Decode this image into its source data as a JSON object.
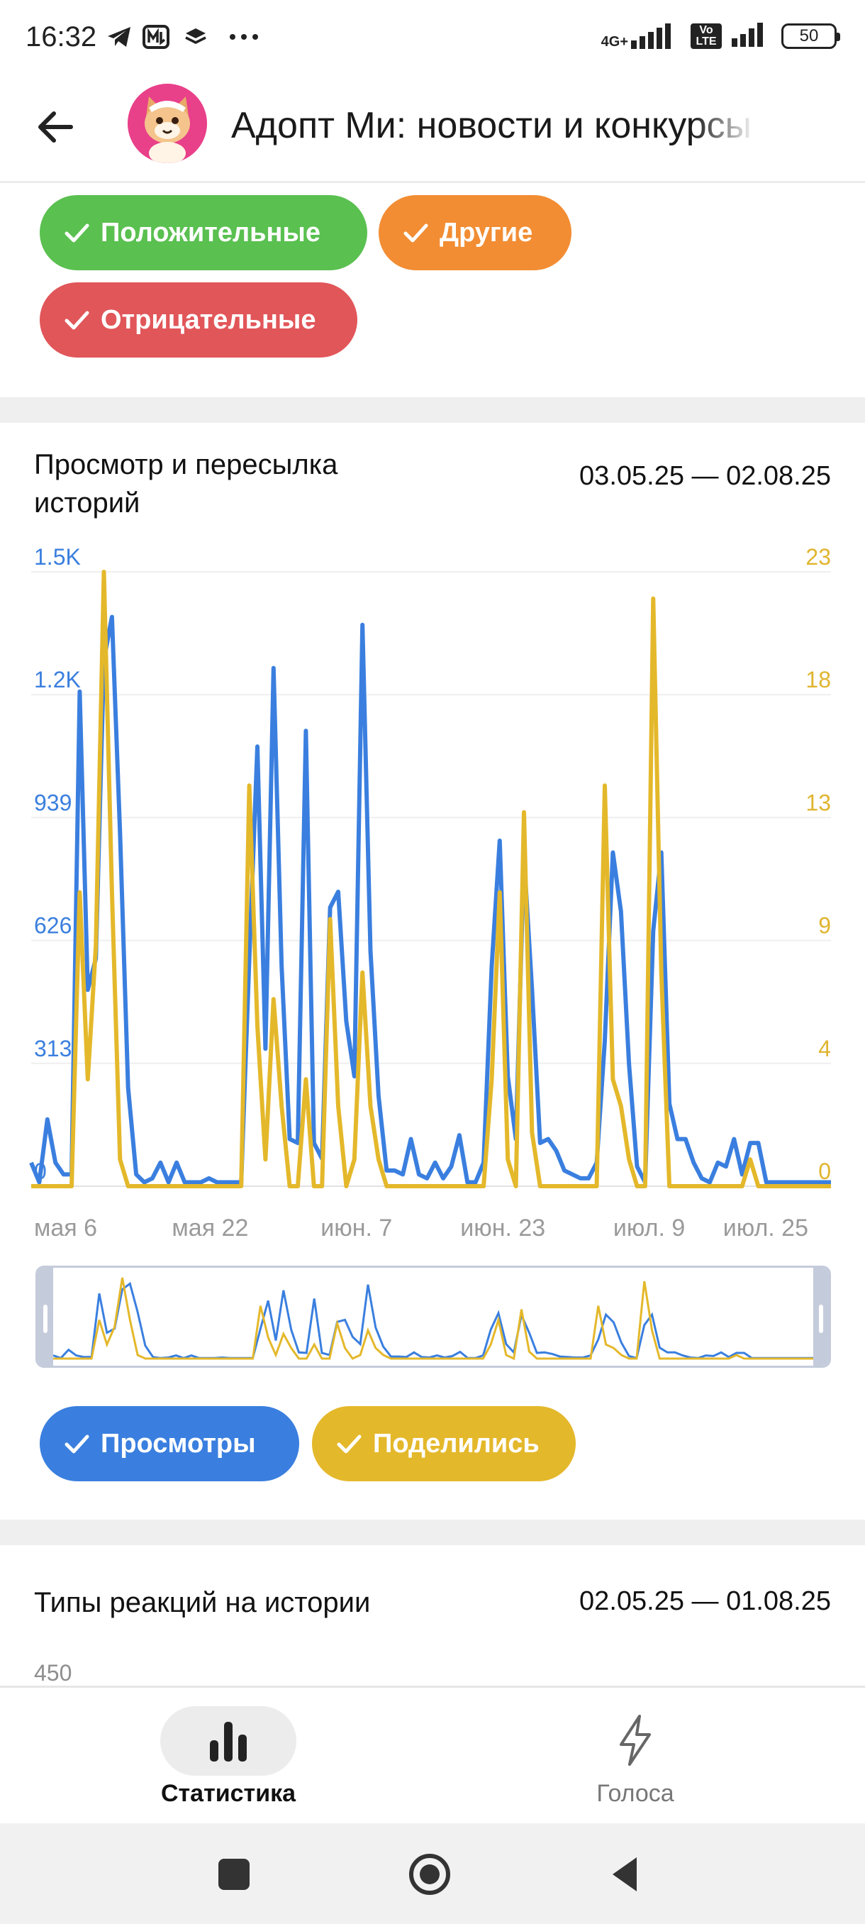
{
  "status_bar": {
    "time": "16:32",
    "network": "4G+",
    "volte": "Vo LTE",
    "battery": "50"
  },
  "header": {
    "title": "Адопт Ми: новости и конкурсы"
  },
  "sentiment_filters": [
    {
      "label": "Положительные",
      "color": "#5ac050"
    },
    {
      "label": "Другие",
      "color": "#f28d33"
    },
    {
      "label": "Отрицательные",
      "color": "#e15659"
    }
  ],
  "stories_card": {
    "title": "Просмотр и пересылка историй",
    "date_range": "03.05.25 — 02.08.25",
    "toggles": [
      {
        "label": "Просмотры",
        "color": "#3a7fdf"
      },
      {
        "label": "Поделились",
        "color": "#e4b82b"
      }
    ]
  },
  "chart_data": {
    "type": "line",
    "title": "Просмотр и пересылка историй",
    "x_tick_labels": [
      "мая 6",
      "мая 22",
      "июн. 7",
      "июн. 23",
      "июл. 9",
      "июл. 25"
    ],
    "x_range": [
      "03.05.25",
      "02.08.25"
    ],
    "y_left_ticks": [
      "0",
      "313",
      "626",
      "939",
      "1.2K",
      "1.5K"
    ],
    "y_right_ticks": [
      "0",
      "4",
      "9",
      "13",
      "18",
      "23"
    ],
    "y_left_range": [
      0,
      1565
    ],
    "y_right_range": [
      0,
      23
    ],
    "grid": true,
    "legend_position": "bottom",
    "series": [
      {
        "name": "Просмотры",
        "axis": "left",
        "color": "#3a7fdf",
        "values": [
          60,
          10,
          170,
          60,
          30,
          30,
          1260,
          500,
          580,
          1340,
          1450,
          900,
          250,
          30,
          10,
          20,
          60,
          10,
          60,
          10,
          10,
          10,
          20,
          10,
          10,
          10,
          10,
          580,
          1120,
          350,
          1320,
          560,
          120,
          110,
          1160,
          110,
          70,
          710,
          750,
          420,
          280,
          1430,
          600,
          230,
          40,
          40,
          30,
          120,
          30,
          20,
          60,
          20,
          50,
          130,
          10,
          10,
          60,
          560,
          880,
          280,
          120,
          840,
          500,
          110,
          120,
          90,
          40,
          30,
          20,
          20,
          60,
          370,
          850,
          700,
          310,
          50,
          10,
          650,
          850,
          210,
          120,
          120,
          60,
          20,
          10,
          60,
          50,
          120,
          30,
          110,
          110,
          10,
          10,
          10,
          10,
          10,
          10,
          10,
          10,
          10
        ]
      },
      {
        "name": "Поделились",
        "axis": "right",
        "color": "#e4b82b",
        "values": [
          0,
          0,
          0,
          0,
          0,
          0,
          11,
          4,
          9,
          23,
          11,
          1,
          0,
          0,
          0,
          0,
          0,
          0,
          0,
          0,
          0,
          0,
          0,
          0,
          0,
          0,
          0,
          15,
          6,
          1,
          7,
          3,
          0,
          0,
          4,
          0,
          0,
          10,
          3,
          0,
          1,
          8,
          3,
          1,
          0,
          0,
          0,
          0,
          0,
          0,
          0,
          0,
          0,
          0,
          0,
          0,
          0,
          4,
          11,
          1,
          0,
          14,
          2,
          0,
          0,
          0,
          0,
          0,
          0,
          0,
          0,
          15,
          4,
          3,
          1,
          0,
          0,
          22,
          8,
          0,
          0,
          0,
          0,
          0,
          0,
          0,
          0,
          0,
          0,
          1,
          0,
          0,
          0,
          0,
          0,
          0,
          0,
          0,
          0,
          0
        ]
      }
    ]
  },
  "reactions_card": {
    "title": "Типы реакций на истории",
    "date_range": "02.05.25 — 01.08.25",
    "y_top_label": "450"
  },
  "bottom_nav": {
    "items": [
      {
        "label": "Статистика",
        "icon": "bar-chart-icon",
        "active": true
      },
      {
        "label": "Голоса",
        "icon": "lightning-icon",
        "active": false
      }
    ]
  },
  "system_nav": {
    "buttons": [
      "recent-apps-icon",
      "home-icon",
      "back-triangle-icon"
    ]
  }
}
